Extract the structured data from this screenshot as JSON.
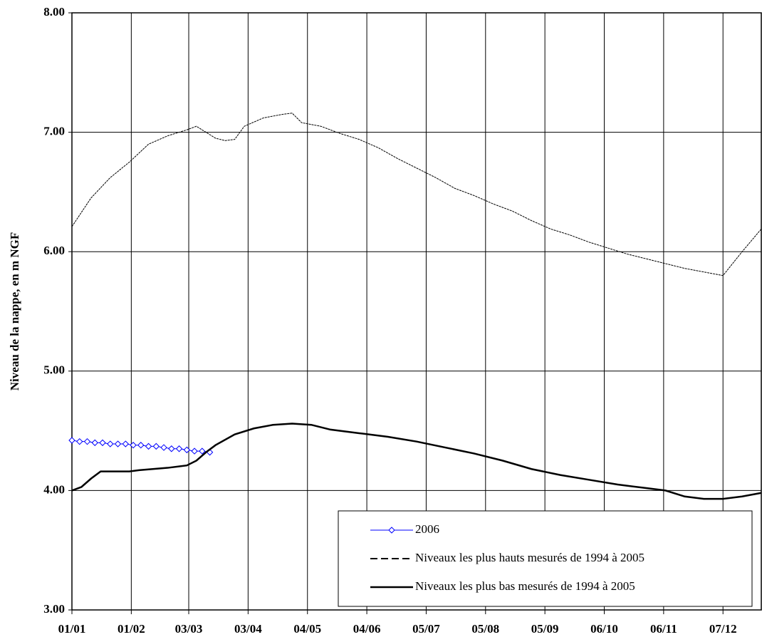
{
  "chart_data": {
    "type": "line",
    "y_label": "Niveau de la nappe, en m NGF",
    "xlim": [
      0,
      360
    ],
    "xticks": [
      {
        "value": 0,
        "label": "01/01"
      },
      {
        "value": 31,
        "label": "01/02"
      },
      {
        "value": 61,
        "label": "03/03"
      },
      {
        "value": 92,
        "label": "03/04"
      },
      {
        "value": 123,
        "label": "04/05"
      },
      {
        "value": 154,
        "label": "04/06"
      },
      {
        "value": 185,
        "label": "05/07"
      },
      {
        "value": 216,
        "label": "05/08"
      },
      {
        "value": 247,
        "label": "05/09"
      },
      {
        "value": 278,
        "label": "06/10"
      },
      {
        "value": 309,
        "label": "06/11"
      },
      {
        "value": 340,
        "label": "07/12"
      }
    ],
    "ylim": [
      3,
      8
    ],
    "yticks": [
      {
        "value": 3,
        "label": "3.00"
      },
      {
        "value": 4,
        "label": "4.00"
      },
      {
        "value": 5,
        "label": "5.00"
      },
      {
        "value": 6,
        "label": "6.00"
      },
      {
        "value": 7,
        "label": "7.00"
      },
      {
        "value": 8,
        "label": "8.00"
      }
    ],
    "grid": true,
    "legend": "lower right",
    "series": [
      {
        "name": "2006",
        "color": "#0000ff",
        "style": "marker-line",
        "x": [
          0,
          4,
          8,
          12,
          16,
          20,
          24,
          28,
          32,
          36,
          40,
          44,
          48,
          52,
          56,
          60,
          64,
          68,
          72
        ],
        "values": [
          4.42,
          4.41,
          4.41,
          4.4,
          4.4,
          4.39,
          4.39,
          4.39,
          4.38,
          4.38,
          4.37,
          4.37,
          4.36,
          4.35,
          4.35,
          4.34,
          4.33,
          4.33,
          4.32
        ]
      },
      {
        "name": "Niveaux les plus hauts mesurés de 1994 à 2005",
        "color": "#000000",
        "style": "dashed",
        "x": [
          0,
          10,
          20,
          30,
          40,
          50,
          60,
          65,
          70,
          75,
          80,
          85,
          90,
          100,
          110,
          115,
          120,
          130,
          140,
          150,
          160,
          170,
          180,
          190,
          200,
          210,
          220,
          230,
          240,
          250,
          260,
          270,
          280,
          290,
          300,
          310,
          320,
          330,
          340,
          350,
          360
        ],
        "values": [
          6.21,
          6.45,
          6.62,
          6.75,
          6.9,
          6.97,
          7.02,
          7.05,
          7.0,
          6.95,
          6.93,
          6.94,
          7.05,
          7.12,
          7.15,
          7.16,
          7.08,
          7.05,
          6.99,
          6.94,
          6.87,
          6.78,
          6.7,
          6.62,
          6.53,
          6.47,
          6.4,
          6.34,
          6.26,
          6.19,
          6.14,
          6.08,
          6.03,
          5.98,
          5.94,
          5.9,
          5.86,
          5.83,
          5.8,
          6.0,
          6.19
        ]
      },
      {
        "name": "Niveaux les plus bas mesurés de 1994 à 2005",
        "color": "#000000",
        "style": "thick",
        "x": [
          0,
          5,
          10,
          15,
          30,
          35,
          50,
          60,
          65,
          70,
          75,
          85,
          95,
          105,
          115,
          125,
          135,
          150,
          165,
          180,
          195,
          210,
          225,
          240,
          255,
          270,
          285,
          300,
          310,
          320,
          330,
          340,
          350,
          360
        ],
        "values": [
          4.0,
          4.03,
          4.1,
          4.16,
          4.16,
          4.17,
          4.19,
          4.21,
          4.25,
          4.32,
          4.38,
          4.47,
          4.52,
          4.55,
          4.56,
          4.55,
          4.51,
          4.48,
          4.45,
          4.41,
          4.36,
          4.31,
          4.25,
          4.18,
          4.13,
          4.09,
          4.05,
          4.02,
          4.0,
          3.95,
          3.93,
          3.93,
          3.95,
          3.98
        ]
      }
    ]
  }
}
